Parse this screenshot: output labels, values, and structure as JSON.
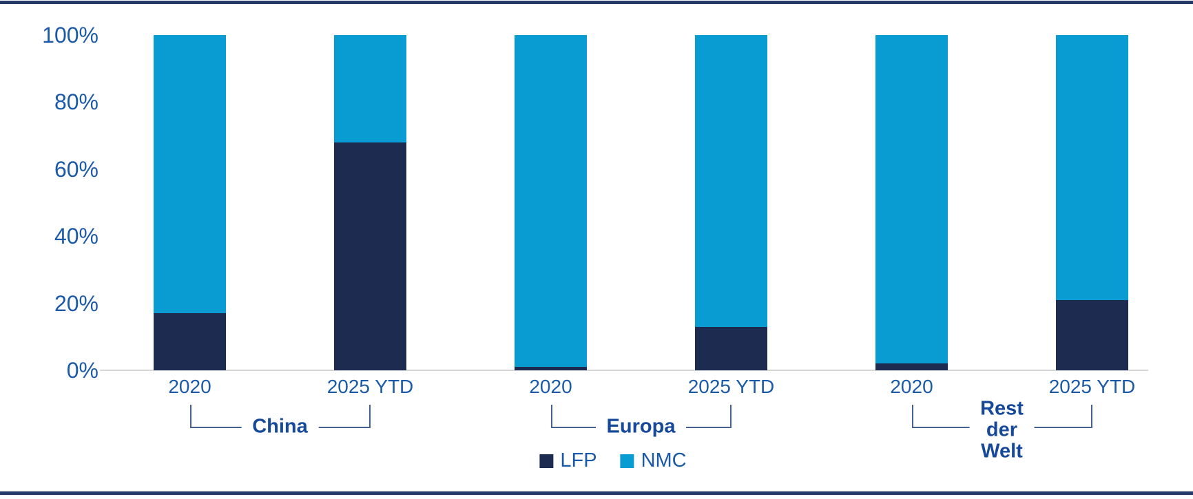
{
  "chart_data": {
    "type": "bar",
    "stacked": true,
    "unit": "percent",
    "ylim": [
      0,
      100
    ],
    "grid": false,
    "legend_position": "bottom-center",
    "y_axis": {
      "tick_values": [
        0,
        20,
        40,
        60,
        80,
        100
      ],
      "tick_labels": [
        "0%",
        "20%",
        "40%",
        "60%",
        "80%",
        "100%"
      ]
    },
    "series_names": [
      "LFP",
      "NMC"
    ],
    "groups": [
      {
        "label": "China",
        "bars": [
          {
            "category": "2020",
            "LFP": 17,
            "NMC": 83
          },
          {
            "category": "2025 YTD",
            "LFP": 68,
            "NMC": 32
          }
        ]
      },
      {
        "label": "Europa",
        "bars": [
          {
            "category": "2020",
            "LFP": 1,
            "NMC": 99
          },
          {
            "category": "2025 YTD",
            "LFP": 13,
            "NMC": 87
          }
        ]
      },
      {
        "label": "Rest\nder\nWelt",
        "bars": [
          {
            "category": "2020",
            "LFP": 2,
            "NMC": 98
          },
          {
            "category": "2025 YTD",
            "LFP": 21,
            "NMC": 79
          }
        ]
      }
    ]
  },
  "legend": {
    "items": [
      {
        "label": "LFP",
        "color": "#1D2B50"
      },
      {
        "label": "NMC",
        "color": "#089CD3"
      }
    ]
  },
  "colors": {
    "lfp": "#1D2B50",
    "nmc": "#089CD3",
    "axis_text": "#1A5AA8",
    "group_label_text": "#17499B",
    "bracket_line": "#44618F",
    "baseline": "#D6D6D6",
    "border_rule": "#263A6A"
  }
}
